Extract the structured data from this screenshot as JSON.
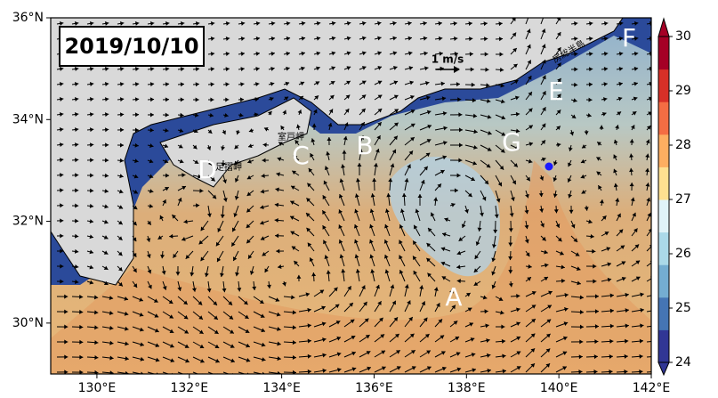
{
  "map": {
    "date": "2019/10/10",
    "scale_label": "1 m/s",
    "lon_range": [
      129,
      142
    ],
    "lat_range": [
      29,
      36
    ],
    "lon_ticks": [
      {
        "value": 130,
        "label": "130°E"
      },
      {
        "value": 132,
        "label": "132°E"
      },
      {
        "value": 134,
        "label": "134°E"
      },
      {
        "value": 136,
        "label": "136°E"
      },
      {
        "value": 138,
        "label": "138°E"
      },
      {
        "value": 140,
        "label": "140°E"
      },
      {
        "value": 142,
        "label": "142°E"
      }
    ],
    "lat_ticks": [
      {
        "value": 30,
        "label": "30°N"
      },
      {
        "value": 32,
        "label": "32°N"
      },
      {
        "value": 34,
        "label": "34°N"
      },
      {
        "value": 36,
        "label": "36°N"
      }
    ],
    "colorbar": {
      "range": [
        24,
        30
      ],
      "ticks": [
        24,
        25,
        26,
        27,
        28,
        29,
        30
      ],
      "colors": [
        "#313695",
        "#4575b4",
        "#74add1",
        "#abd9e9",
        "#e0f3f8",
        "#fee090",
        "#fdae61",
        "#f46d43",
        "#d73027",
        "#a50026"
      ]
    },
    "region_labels": [
      "A",
      "B",
      "C",
      "D",
      "E",
      "F",
      "G"
    ],
    "place_labels": [
      "室戸岬",
      "足摺岬",
      "房総半島"
    ]
  }
}
